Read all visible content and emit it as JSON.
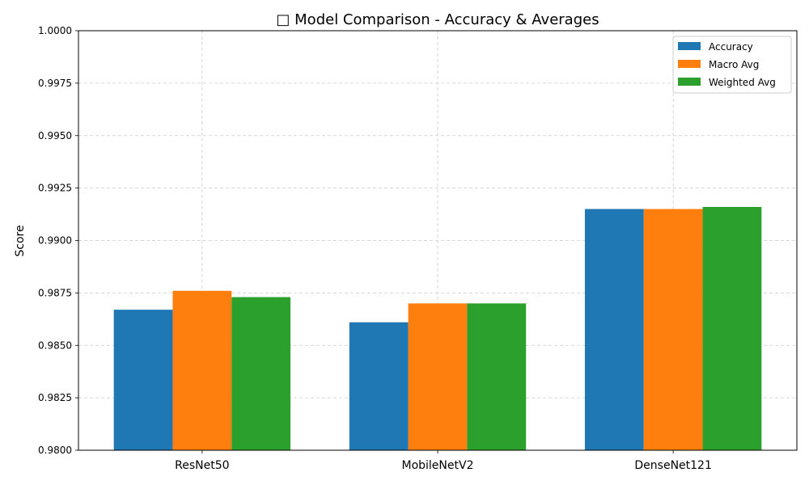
{
  "chart_data": {
    "type": "bar",
    "title": "□ Model Comparison - Accuracy & Averages",
    "xlabel": "",
    "ylabel": "Score",
    "categories": [
      "ResNet50",
      "MobileNetV2",
      "DenseNet121"
    ],
    "series": [
      {
        "name": "Accuracy",
        "values": [
          0.9867,
          0.9861,
          0.9915
        ],
        "color": "#1f77b4"
      },
      {
        "name": "Macro Avg",
        "values": [
          0.9876,
          0.987,
          0.9915
        ],
        "color": "#ff7f0e"
      },
      {
        "name": "Weighted Avg",
        "values": [
          0.9873,
          0.987,
          0.9916
        ],
        "color": "#2ca02c"
      }
    ],
    "ylim": [
      0.98,
      1.0
    ],
    "yticks": [
      "0.9800",
      "0.9825",
      "0.9850",
      "0.9875",
      "0.9900",
      "0.9925",
      "0.9950",
      "0.9975",
      "1.0000"
    ],
    "grid": true,
    "legend_position": "top-right"
  }
}
